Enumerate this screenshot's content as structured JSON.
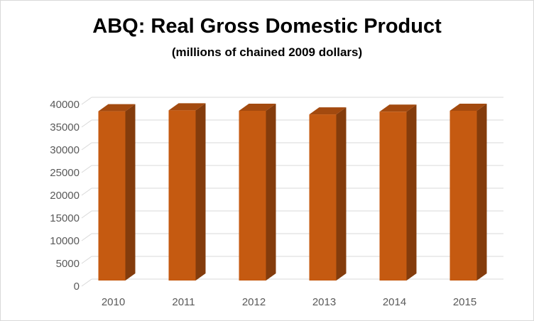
{
  "chart_data": {
    "type": "bar",
    "title": "ABQ: Real Gross Domestic Product",
    "subtitle": "(millions of chained 2009 dollars)",
    "categories": [
      "2010",
      "2011",
      "2012",
      "2013",
      "2014",
      "2015"
    ],
    "values": [
      38500,
      38700,
      38600,
      37800,
      38400,
      38600
    ],
    "ylim": [
      0,
      40000
    ],
    "yticks": [
      0,
      5000,
      10000,
      15000,
      20000,
      25000,
      30000,
      35000,
      40000
    ],
    "grid": true,
    "three_d": true,
    "colors": {
      "bar_front": "#c55a11",
      "bar_side": "#843c0c",
      "bar_top": "#a34a0f",
      "grid": "#d9d9d9",
      "axis_text": "#595959"
    }
  }
}
